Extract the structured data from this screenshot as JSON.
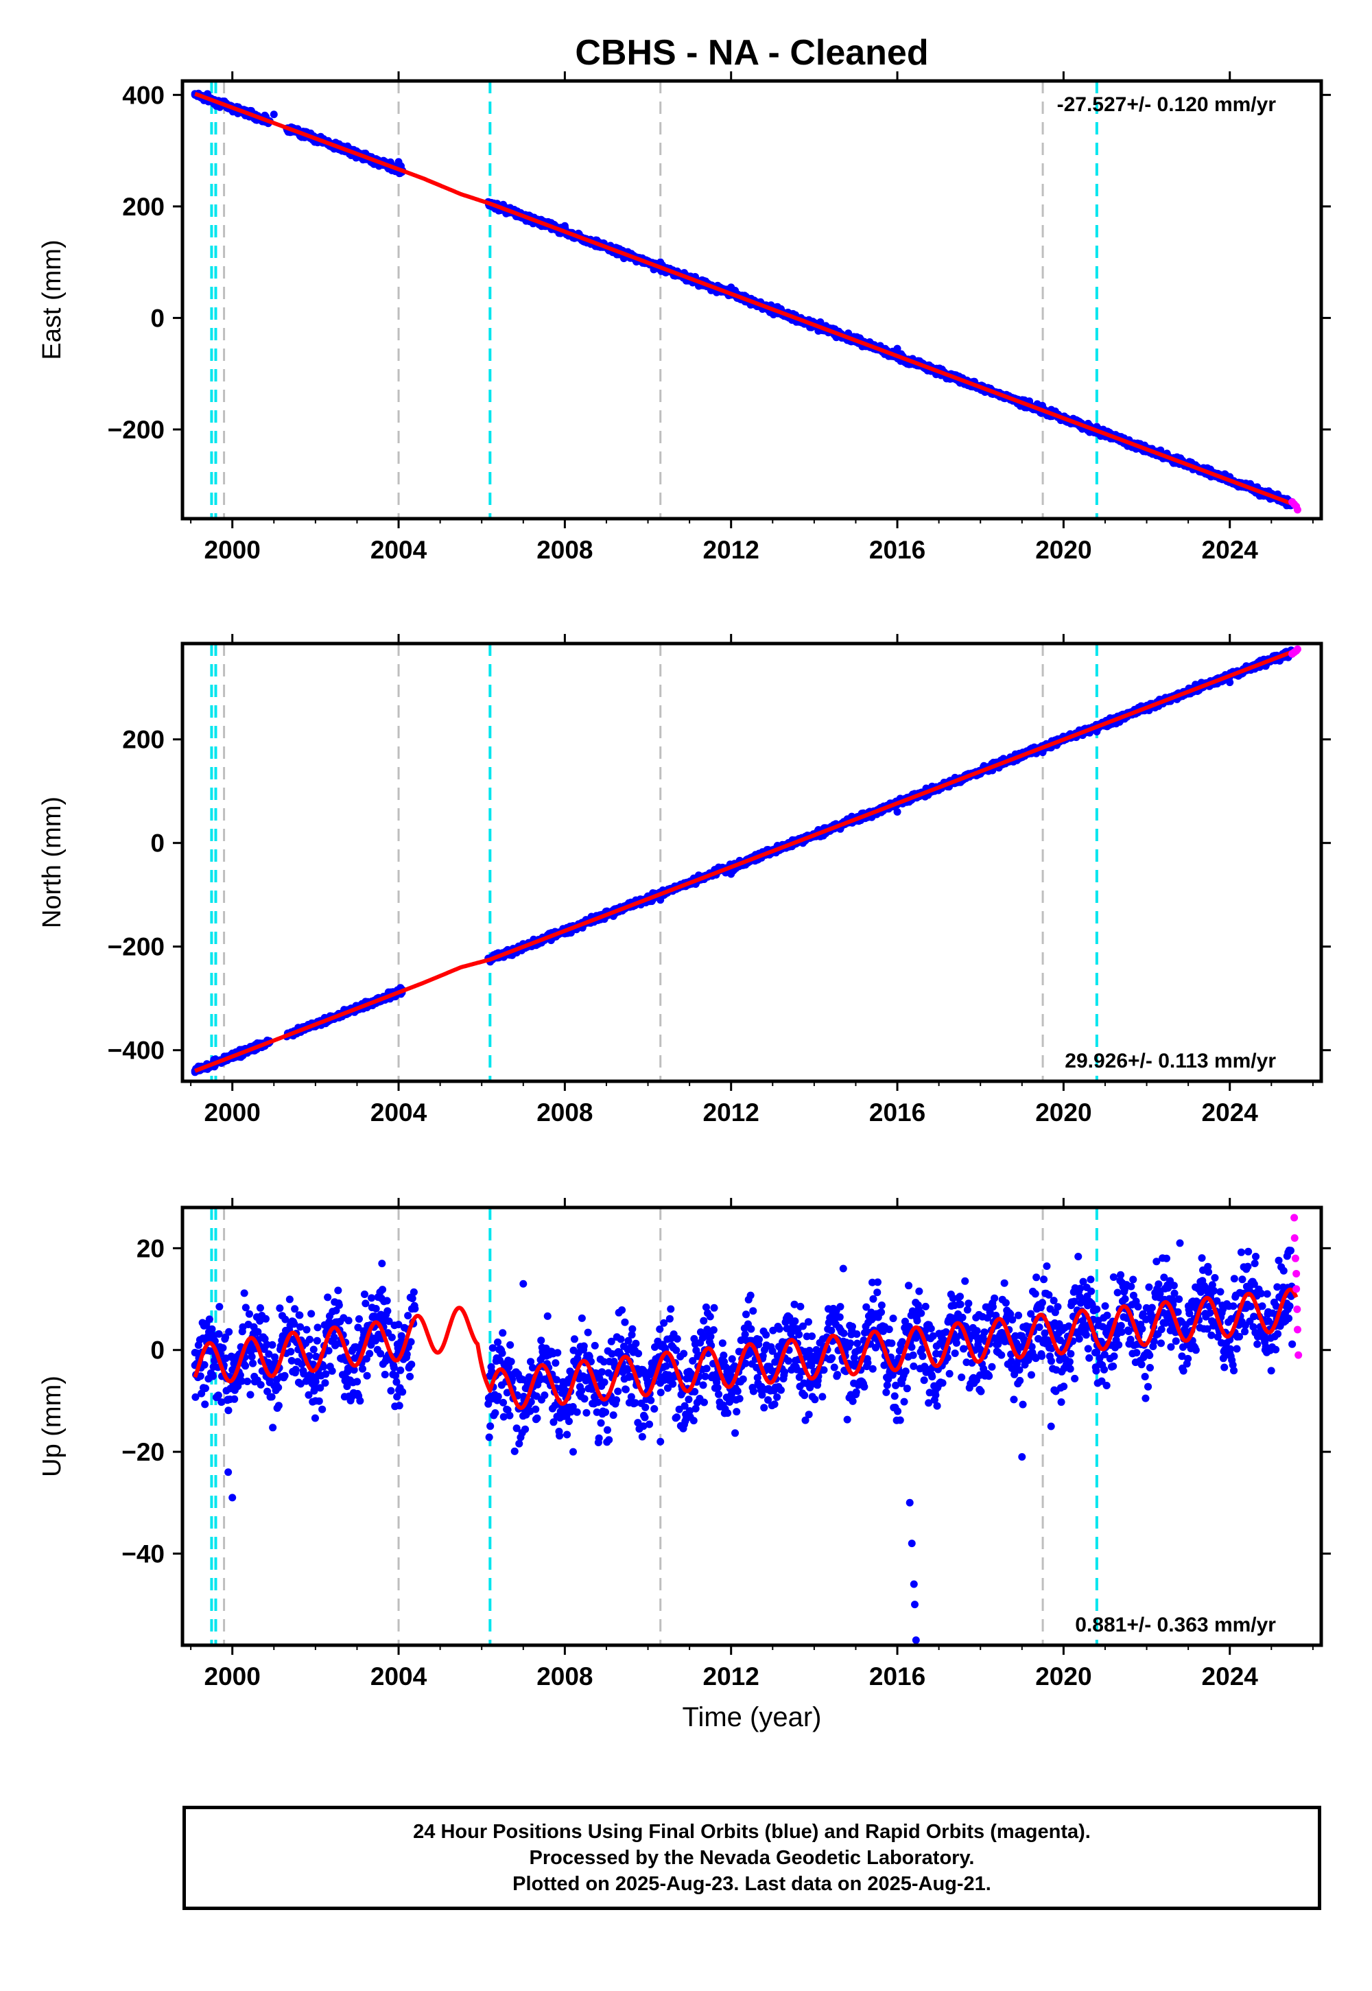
{
  "page_title": "CBHS  - NA - Cleaned",
  "footer": {
    "lines": [
      "24 Hour Positions Using Final Orbits (blue) and Rapid Orbits (magenta).",
      "Processed by the Nevada Geodetic Laboratory.",
      "Plotted on 2025-Aug-23. Last data on 2025-Aug-21."
    ]
  },
  "colors": {
    "final_orbits": "#0000ff",
    "rapid_orbits": "#ff00ff",
    "model_fit": "#ff0000",
    "equipment_change_lines": "#00e5ee",
    "gray_lines": "#bebebe"
  },
  "chart_data": [
    {
      "type": "scatter",
      "title": "CBHS  - NA - Cleaned",
      "xlabel": "",
      "ylabel": "East (mm)",
      "xlim": [
        1998.8,
        2026.2
      ],
      "ylim": [
        -360,
        425
      ],
      "xticks": [
        2000,
        2004,
        2008,
        2012,
        2016,
        2020,
        2024
      ],
      "yticks": [
        -200,
        0,
        200,
        400
      ],
      "rate_label": "-27.527+/- 0.120 mm/yr",
      "rate_position": "top-right",
      "series": [
        {
          "name": "",
          "style": "final-points",
          "x": [
            1999.1,
            2001.0,
            2004.0,
            2006.2,
            2008.0,
            2010.3,
            2012.0,
            2016.0,
            2019.5,
            2020.8,
            2024.0,
            2025.5
          ],
          "y": [
            402,
            365,
            280,
            205,
            165,
            100,
            55,
            -55,
            -165,
            -195,
            -285,
            -330
          ]
        },
        {
          "name": "",
          "style": "rapid-points",
          "x": [
            2025.5,
            2025.55,
            2025.6,
            2025.63
          ],
          "y": [
            -330,
            -334,
            -338,
            -344
          ]
        },
        {
          "name": "",
          "style": "model-line",
          "x": [
            1999.1,
            2004.6,
            2005.5,
            2006.2,
            2025.6
          ],
          "y": [
            402,
            250,
            222,
            205,
            -336
          ]
        }
      ],
      "gray_lines_x": [
        1999.8,
        2004.0,
        2010.3,
        2019.5
      ],
      "cyan_lines_x": [
        1999.5,
        1999.6,
        2006.2,
        2020.8
      ]
    },
    {
      "type": "scatter",
      "title": "",
      "xlabel": "",
      "ylabel": "North (mm)",
      "xlim": [
        1998.8,
        2026.2
      ],
      "ylim": [
        -460,
        385
      ],
      "xticks": [
        2000,
        2004,
        2008,
        2012,
        2016,
        2020,
        2024
      ],
      "yticks": [
        -400,
        -200,
        0,
        200
      ],
      "rate_label": "29.926+/- 0.113 mm/yr",
      "rate_position": "bottom-right",
      "series": [
        {
          "name": "",
          "style": "final-points",
          "x": [
            1999.1,
            2000.0,
            2004.0,
            2006.2,
            2008.0,
            2010.3,
            2012.0,
            2016.0,
            2019.5,
            2020.8,
            2024.0,
            2025.5
          ],
          "y": [
            -440,
            -410,
            -290,
            -225,
            -175,
            -110,
            -60,
            60,
            175,
            215,
            310,
            365
          ]
        },
        {
          "name": "",
          "style": "rapid-points",
          "x": [
            2025.5,
            2025.55,
            2025.6,
            2025.63
          ],
          "y": [
            365,
            368,
            371,
            374
          ]
        },
        {
          "name": "",
          "style": "model-line",
          "x": [
            1999.1,
            2004.6,
            2005.5,
            2006.2,
            2025.6
          ],
          "y": [
            -440,
            -270,
            -240,
            -225,
            372
          ]
        }
      ],
      "gray_lines_x": [
        1999.8,
        2004.0,
        2010.3,
        2019.5
      ],
      "cyan_lines_x": [
        1999.5,
        1999.6,
        2006.2,
        2020.8
      ]
    },
    {
      "type": "scatter",
      "title": "",
      "xlabel": "Time (year)",
      "ylabel": "Up (mm)",
      "xlim": [
        1998.8,
        2026.2
      ],
      "ylim": [
        -58,
        28
      ],
      "xticks": [
        2000,
        2004,
        2008,
        2012,
        2016,
        2020,
        2024
      ],
      "yticks": [
        -40,
        -20,
        0,
        20
      ],
      "rate_label": "0.881+/- 0.363 mm/yr",
      "rate_position": "bottom-right",
      "series": [
        {
          "name": "",
          "style": "final-points",
          "x": [
            1999.1,
            1999.9,
            2000.0,
            2002.0,
            2003.6,
            2004.0,
            2006.3,
            2007.0,
            2008.2,
            2010.3,
            2012.0,
            2014.7,
            2016.3,
            2016.35,
            2016.4,
            2016.42,
            2016.45,
            2019.0,
            2019.7,
            2020.8,
            2022.8,
            2024.0,
            2025.4
          ],
          "y": [
            -3,
            -24,
            -29,
            -10,
            17,
            5,
            -5,
            13,
            -20,
            -18,
            -4,
            16,
            -30,
            -38,
            -46,
            -50,
            -57,
            -21,
            -15,
            8,
            21,
            2,
            8
          ]
        },
        {
          "name": "",
          "style": "rapid-points",
          "x": [
            2025.55,
            2025.56,
            2025.58,
            2025.6,
            2025.6,
            2025.62,
            2025.63,
            2025.65
          ],
          "y": [
            26,
            22,
            18,
            15,
            12,
            8,
            4,
            -1
          ]
        },
        {
          "name": "",
          "style": "model-line",
          "x": [
            1999.1,
            2004.0,
            2005.9,
            2006.2,
            2025.6
          ],
          "y": [
            -3,
            2,
            5,
            -8,
            8
          ]
        }
      ],
      "gray_lines_x": [
        1999.8,
        2004.0,
        2010.3,
        2019.5
      ],
      "cyan_lines_x": [
        1999.5,
        1999.6,
        2006.2,
        2020.8
      ]
    }
  ]
}
